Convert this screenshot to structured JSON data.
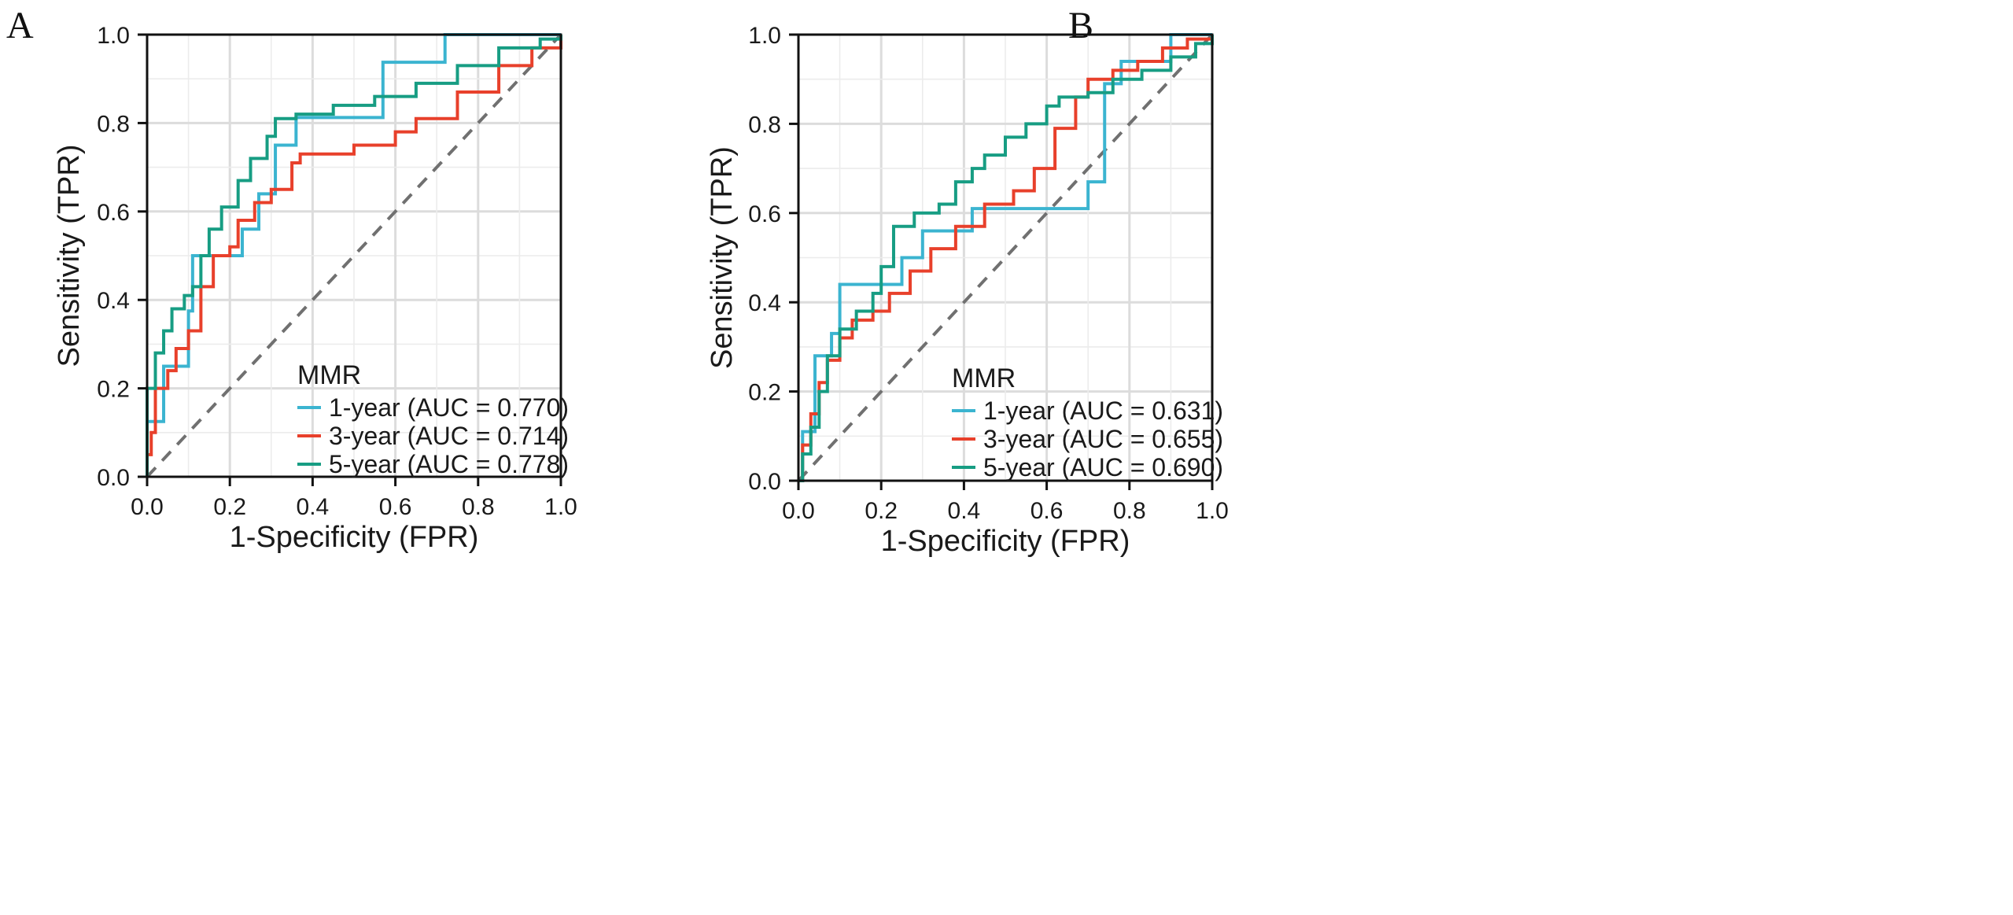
{
  "chart_data": [
    {
      "type": "line",
      "panel_label": "A",
      "xlabel": "1-Specificity (FPR)",
      "ylabel": "Sensitivity (TPR)",
      "xlim": [
        0,
        1
      ],
      "ylim": [
        0,
        1
      ],
      "x_ticks": [
        "0.0",
        "0.2",
        "0.4",
        "0.6",
        "0.8",
        "1.0"
      ],
      "y_ticks": [
        "0.0",
        "0.2",
        "0.4",
        "0.6",
        "0.8",
        "1.0"
      ],
      "grid": true,
      "legend": {
        "title": "MMR",
        "placement": "bottom-right",
        "entries": [
          "1-year (AUC = 0.770)",
          "3-year (AUC = 0.714)",
          "5-year (AUC = 0.778)"
        ]
      },
      "reference_line": {
        "x": [
          0,
          1
        ],
        "y": [
          0,
          1
        ],
        "style": "dashed",
        "color": "#707070"
      },
      "series": [
        {
          "name": "1-year (AUC = 0.770)",
          "color": "#3bb4d0",
          "points": [
            [
              0,
              0
            ],
            [
              0,
              0.125
            ],
            [
              0.02,
              0.125
            ],
            [
              0.04,
              0.25
            ],
            [
              0.08,
              0.25
            ],
            [
              0.1,
              0.375
            ],
            [
              0.11,
              0.5
            ],
            [
              0.21,
              0.5
            ],
            [
              0.23,
              0.56
            ],
            [
              0.27,
              0.64
            ],
            [
              0.31,
              0.75
            ],
            [
              0.36,
              0.8125
            ],
            [
              0.53,
              0.8125
            ],
            [
              0.57,
              0.9375
            ],
            [
              0.72,
              0.9375
            ],
            [
              0.72,
              1.0
            ],
            [
              1.0,
              1.0
            ]
          ]
        },
        {
          "name": "3-year (AUC = 0.714)",
          "color": "#e8402b",
          "points": [
            [
              0,
              0
            ],
            [
              0,
              0.05
            ],
            [
              0.01,
              0.1
            ],
            [
              0.02,
              0.2
            ],
            [
              0.05,
              0.24
            ],
            [
              0.07,
              0.29
            ],
            [
              0.1,
              0.33
            ],
            [
              0.13,
              0.43
            ],
            [
              0.16,
              0.5
            ],
            [
              0.2,
              0.52
            ],
            [
              0.22,
              0.58
            ],
            [
              0.26,
              0.62
            ],
            [
              0.3,
              0.65
            ],
            [
              0.35,
              0.71
            ],
            [
              0.37,
              0.73
            ],
            [
              0.45,
              0.73
            ],
            [
              0.5,
              0.75
            ],
            [
              0.6,
              0.78
            ],
            [
              0.65,
              0.81
            ],
            [
              0.75,
              0.87
            ],
            [
              0.85,
              0.93
            ],
            [
              0.93,
              0.97
            ],
            [
              1.0,
              1.0
            ]
          ]
        },
        {
          "name": "5-year (AUC = 0.778)",
          "color": "#179d83",
          "points": [
            [
              0,
              0
            ],
            [
              0,
              0.2
            ],
            [
              0.02,
              0.28
            ],
            [
              0.04,
              0.33
            ],
            [
              0.06,
              0.38
            ],
            [
              0.09,
              0.41
            ],
            [
              0.11,
              0.43
            ],
            [
              0.13,
              0.5
            ],
            [
              0.15,
              0.56
            ],
            [
              0.18,
              0.61
            ],
            [
              0.22,
              0.67
            ],
            [
              0.25,
              0.72
            ],
            [
              0.29,
              0.77
            ],
            [
              0.31,
              0.81
            ],
            [
              0.36,
              0.82
            ],
            [
              0.45,
              0.84
            ],
            [
              0.55,
              0.86
            ],
            [
              0.65,
              0.89
            ],
            [
              0.75,
              0.93
            ],
            [
              0.85,
              0.97
            ],
            [
              0.95,
              0.99
            ],
            [
              1.0,
              1.0
            ]
          ]
        }
      ]
    },
    {
      "type": "line",
      "panel_label": "B",
      "xlabel": "1-Specificity (FPR)",
      "ylabel": "Sensitivity (TPR)",
      "xlim": [
        0,
        1
      ],
      "ylim": [
        0,
        1
      ],
      "x_ticks": [
        "0.0",
        "0.2",
        "0.4",
        "0.6",
        "0.8",
        "1.0"
      ],
      "y_ticks": [
        "0.0",
        "0.2",
        "0.4",
        "0.6",
        "0.8",
        "1.0"
      ],
      "grid": true,
      "legend": {
        "title": "MMR",
        "placement": "bottom-right",
        "entries": [
          "1-year (AUC = 0.631)",
          "3-year (AUC = 0.655)",
          "5-year (AUC = 0.690)"
        ]
      },
      "reference_line": {
        "x": [
          0,
          1
        ],
        "y": [
          0,
          1
        ],
        "style": "dashed",
        "color": "#707070"
      },
      "series": [
        {
          "name": "1-year (AUC = 0.631)",
          "color": "#3bb4d0",
          "points": [
            [
              0,
              0
            ],
            [
              0.01,
              0.11
            ],
            [
              0.03,
              0.11
            ],
            [
              0.04,
              0.28
            ],
            [
              0.06,
              0.28
            ],
            [
              0.08,
              0.33
            ],
            [
              0.1,
              0.44
            ],
            [
              0.2,
              0.44
            ],
            [
              0.25,
              0.5
            ],
            [
              0.3,
              0.56
            ],
            [
              0.4,
              0.56
            ],
            [
              0.42,
              0.61
            ],
            [
              0.68,
              0.61
            ],
            [
              0.7,
              0.67
            ],
            [
              0.72,
              0.67
            ],
            [
              0.74,
              0.89
            ],
            [
              0.76,
              0.89
            ],
            [
              0.78,
              0.94
            ],
            [
              0.88,
              0.94
            ],
            [
              0.9,
              1.0
            ],
            [
              1.0,
              1.0
            ]
          ]
        },
        {
          "name": "3-year (AUC = 0.655)",
          "color": "#e8402b",
          "points": [
            [
              0,
              0
            ],
            [
              0.01,
              0.08
            ],
            [
              0.03,
              0.15
            ],
            [
              0.05,
              0.22
            ],
            [
              0.07,
              0.27
            ],
            [
              0.1,
              0.32
            ],
            [
              0.13,
              0.36
            ],
            [
              0.18,
              0.38
            ],
            [
              0.22,
              0.42
            ],
            [
              0.27,
              0.47
            ],
            [
              0.32,
              0.52
            ],
            [
              0.38,
              0.57
            ],
            [
              0.45,
              0.62
            ],
            [
              0.52,
              0.65
            ],
            [
              0.57,
              0.7
            ],
            [
              0.62,
              0.79
            ],
            [
              0.67,
              0.86
            ],
            [
              0.7,
              0.9
            ],
            [
              0.76,
              0.92
            ],
            [
              0.82,
              0.94
            ],
            [
              0.88,
              0.97
            ],
            [
              0.94,
              0.99
            ],
            [
              1.0,
              1.0
            ]
          ]
        },
        {
          "name": "5-year (AUC = 0.690)",
          "color": "#179d83",
          "points": [
            [
              0,
              0
            ],
            [
              0.01,
              0.06
            ],
            [
              0.03,
              0.12
            ],
            [
              0.05,
              0.2
            ],
            [
              0.07,
              0.28
            ],
            [
              0.1,
              0.34
            ],
            [
              0.14,
              0.38
            ],
            [
              0.18,
              0.42
            ],
            [
              0.2,
              0.48
            ],
            [
              0.23,
              0.57
            ],
            [
              0.28,
              0.6
            ],
            [
              0.34,
              0.62
            ],
            [
              0.38,
              0.67
            ],
            [
              0.42,
              0.7
            ],
            [
              0.45,
              0.73
            ],
            [
              0.5,
              0.77
            ],
            [
              0.55,
              0.8
            ],
            [
              0.6,
              0.84
            ],
            [
              0.63,
              0.86
            ],
            [
              0.7,
              0.87
            ],
            [
              0.76,
              0.9
            ],
            [
              0.83,
              0.92
            ],
            [
              0.9,
              0.95
            ],
            [
              0.96,
              0.98
            ],
            [
              1.0,
              1.0
            ]
          ]
        }
      ]
    }
  ]
}
